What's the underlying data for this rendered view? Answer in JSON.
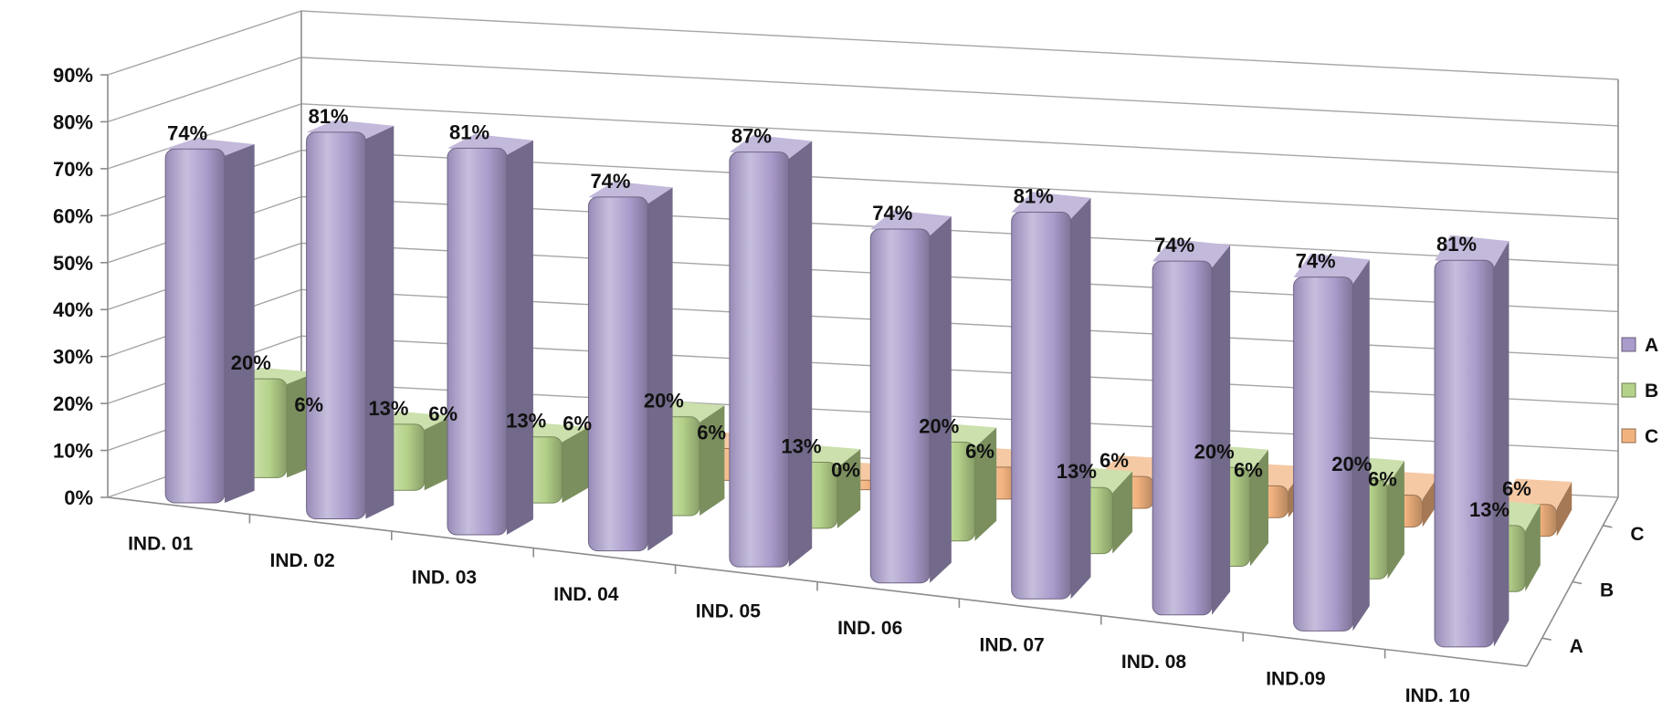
{
  "chart_data": {
    "type": "bar",
    "title": "",
    "xlabel": "",
    "ylabel": "",
    "ylim": [
      0,
      0.9
    ],
    "grid": true,
    "legend_position": "right",
    "y_tick_labels": [
      "0%",
      "10%",
      "20%",
      "30%",
      "40%",
      "50%",
      "60%",
      "70%",
      "80%",
      "90%"
    ],
    "depth_axis_labels": [
      "A",
      "B",
      "C"
    ],
    "categories": [
      "IND. 01",
      "IND. 02",
      "IND. 03",
      "IND. 04",
      "IND. 05",
      "IND. 06",
      "IND. 07",
      "IND. 08",
      "IND.09",
      "IND. 10"
    ],
    "series": [
      {
        "name": "A",
        "color": "#a99bcb",
        "values": [
          0.74,
          0.81,
          0.81,
          0.74,
          0.87,
          0.74,
          0.81,
          0.74,
          0.74,
          0.81
        ],
        "labels": [
          "74%",
          "81%",
          "81%",
          "74%",
          "87%",
          "74%",
          "81%",
          "74%",
          "74%",
          "81%"
        ]
      },
      {
        "name": "B",
        "color": "#b5d28a",
        "values": [
          0.2,
          0.13,
          0.13,
          0.2,
          0.13,
          0.2,
          0.13,
          0.2,
          0.2,
          0.13
        ],
        "labels": [
          "20%",
          "13%",
          "13%",
          "20%",
          "13%",
          "20%",
          "13%",
          "20%",
          "20%",
          "13%"
        ]
      },
      {
        "name": "C",
        "color": "#f2b27e",
        "values": [
          0.06,
          0.06,
          0.06,
          0.06,
          0.0,
          0.06,
          0.06,
          0.06,
          0.06,
          0.06
        ],
        "labels": [
          "6%",
          "6%",
          "6%",
          "6%",
          "0%",
          "6%",
          "6%",
          "6%",
          "6%",
          "6%"
        ]
      }
    ]
  }
}
